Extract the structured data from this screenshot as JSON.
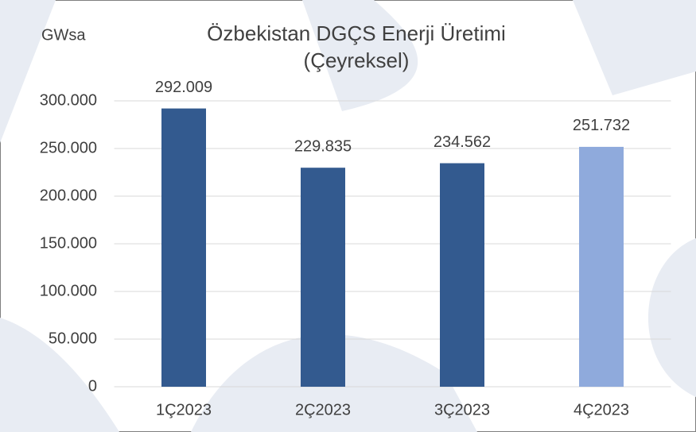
{
  "chart_data": {
    "type": "bar",
    "title": "Özbekistan DGÇS Enerji Üretimi",
    "subtitle": "(Çeyreksel)",
    "y_label": "GWsa",
    "categories": [
      "1Ç2023",
      "2Ç2023",
      "3Ç2023",
      "4Ç2023"
    ],
    "values": [
      292009,
      229835,
      234562,
      251732
    ],
    "value_labels": [
      "292.009",
      "229.835",
      "234.562",
      "251.732"
    ],
    "colors": [
      "#335a8f",
      "#335a8f",
      "#335a8f",
      "#8faadc"
    ],
    "ylim": [
      0,
      300000
    ],
    "yticks": [
      0,
      {
        "value": 50000,
        "label": "50.000"
      },
      {
        "value": 100000,
        "label": "100.000"
      },
      {
        "value": 150000,
        "label": "150.000"
      },
      {
        "value": 200000,
        "label": "200.000"
      },
      {
        "value": 250000,
        "label": "250.000"
      },
      {
        "value": 300000,
        "label": "300.000"
      }
    ],
    "grid": true
  }
}
